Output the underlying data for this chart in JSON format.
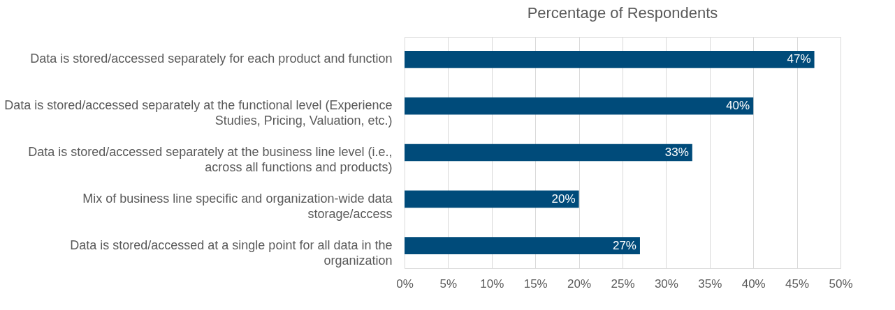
{
  "chart_data": {
    "type": "bar",
    "orientation": "horizontal",
    "title": "Percentage of Respondents",
    "categories": [
      "Data is stored/accessed separately for each product and function",
      "Data is stored/accessed separately at the functional level (Experience\nStudies, Pricing, Valuation, etc.)",
      "Data is stored/accessed separately at the business line level (i.e.,\nacross all functions and products)",
      "Mix of business line specific and organization-wide data\nstorage/access",
      "Data is stored/accessed at a single point for all data in the\norganization"
    ],
    "values": [
      47,
      40,
      33,
      20,
      27
    ],
    "value_labels": [
      "47%",
      "40%",
      "33%",
      "20%",
      "27%"
    ],
    "color": "#004b7a",
    "xlim": [
      0,
      50
    ],
    "xticks": [
      {
        "value": 0,
        "label": "0%"
      },
      {
        "value": 5,
        "label": "5%"
      },
      {
        "value": 10,
        "label": "10%"
      },
      {
        "value": 15,
        "label": "15%"
      },
      {
        "value": 20,
        "label": "20%"
      },
      {
        "value": 25,
        "label": "25%"
      },
      {
        "value": 30,
        "label": "30%"
      },
      {
        "value": 35,
        "label": "35%"
      },
      {
        "value": 40,
        "label": "40%"
      },
      {
        "value": 45,
        "label": "45%"
      },
      {
        "value": 50,
        "label": "50%"
      }
    ],
    "grid": "x"
  }
}
